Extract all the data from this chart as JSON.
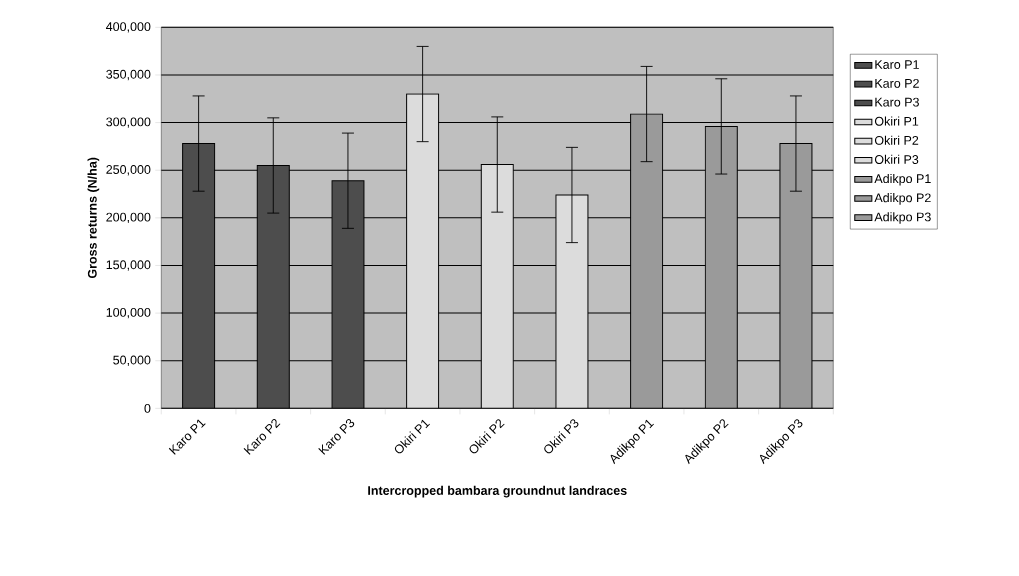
{
  "chart_data": {
    "type": "bar",
    "xlabel": "Intercropped bambara groundnut landraces",
    "ylabel": "Gross returns (N/ha)",
    "categories": [
      "Karo P1",
      "Karo P2",
      "Karo P3",
      "Okiri P1",
      "Okiri P2",
      "Okiri P3",
      "Adikpo P1",
      "Adikpo P2",
      "Adikpo P3"
    ],
    "series": [
      {
        "name": "Karo P1",
        "color": "#4d4d4d",
        "values": [
          278000,
          null,
          null,
          null,
          null,
          null,
          null,
          null,
          null
        ],
        "errors": [
          50000,
          null,
          null,
          null,
          null,
          null,
          null,
          null,
          null
        ]
      },
      {
        "name": "Karo P2",
        "color": "#4d4d4d",
        "values": [
          null,
          255000,
          null,
          null,
          null,
          null,
          null,
          null,
          null
        ],
        "errors": [
          null,
          50000,
          null,
          null,
          null,
          null,
          null,
          null,
          null
        ]
      },
      {
        "name": "Karo P3",
        "color": "#4d4d4d",
        "values": [
          null,
          null,
          239000,
          null,
          null,
          null,
          null,
          null,
          null
        ],
        "errors": [
          null,
          null,
          50000,
          null,
          null,
          null,
          null,
          null,
          null
        ]
      },
      {
        "name": "Okiri P1",
        "color": "#dcdcdc",
        "values": [
          null,
          null,
          null,
          330000,
          null,
          null,
          null,
          null,
          null
        ],
        "errors": [
          null,
          null,
          null,
          50000,
          null,
          null,
          null,
          null,
          null
        ]
      },
      {
        "name": "Okiri P2",
        "color": "#dcdcdc",
        "values": [
          null,
          null,
          null,
          null,
          256000,
          null,
          null,
          null,
          null
        ],
        "errors": [
          null,
          null,
          null,
          null,
          50000,
          null,
          null,
          null,
          null
        ]
      },
      {
        "name": "Okiri P3",
        "color": "#dcdcdc",
        "values": [
          null,
          null,
          null,
          null,
          null,
          224000,
          null,
          null,
          null
        ],
        "errors": [
          null,
          null,
          null,
          null,
          null,
          50000,
          null,
          null,
          null
        ]
      },
      {
        "name": "Adikpo P1",
        "color": "#9a9a9a",
        "values": [
          null,
          null,
          null,
          null,
          null,
          null,
          309000,
          null,
          null
        ],
        "errors": [
          null,
          null,
          null,
          null,
          null,
          null,
          50000,
          null,
          null
        ]
      },
      {
        "name": "Adikpo P2",
        "color": "#9a9a9a",
        "values": [
          null,
          null,
          null,
          null,
          null,
          null,
          null,
          296000,
          null
        ],
        "errors": [
          null,
          null,
          null,
          null,
          null,
          null,
          null,
          50000,
          null
        ]
      },
      {
        "name": "Adikpo P3",
        "color": "#9a9a9a",
        "values": [
          null,
          null,
          null,
          null,
          null,
          null,
          null,
          null,
          278000
        ],
        "errors": [
          null,
          null,
          null,
          null,
          null,
          null,
          null,
          null,
          50000
        ]
      }
    ],
    "ylim": [
      0,
      400000
    ],
    "yticks": [
      0,
      {
        "value": 50000,
        "label": "50,000"
      },
      {
        "value": 100000,
        "label": "100,000"
      },
      {
        "value": 150000,
        "label": "150,000"
      },
      {
        "value": 200000,
        "label": "200,000"
      },
      {
        "value": 250000,
        "label": "250,000"
      },
      {
        "value": 300000,
        "label": "300,000"
      },
      {
        "value": 350000,
        "label": "350,000"
      },
      {
        "value": 400000,
        "label": "400,000"
      }
    ],
    "grid": "y",
    "legend": "right"
  }
}
